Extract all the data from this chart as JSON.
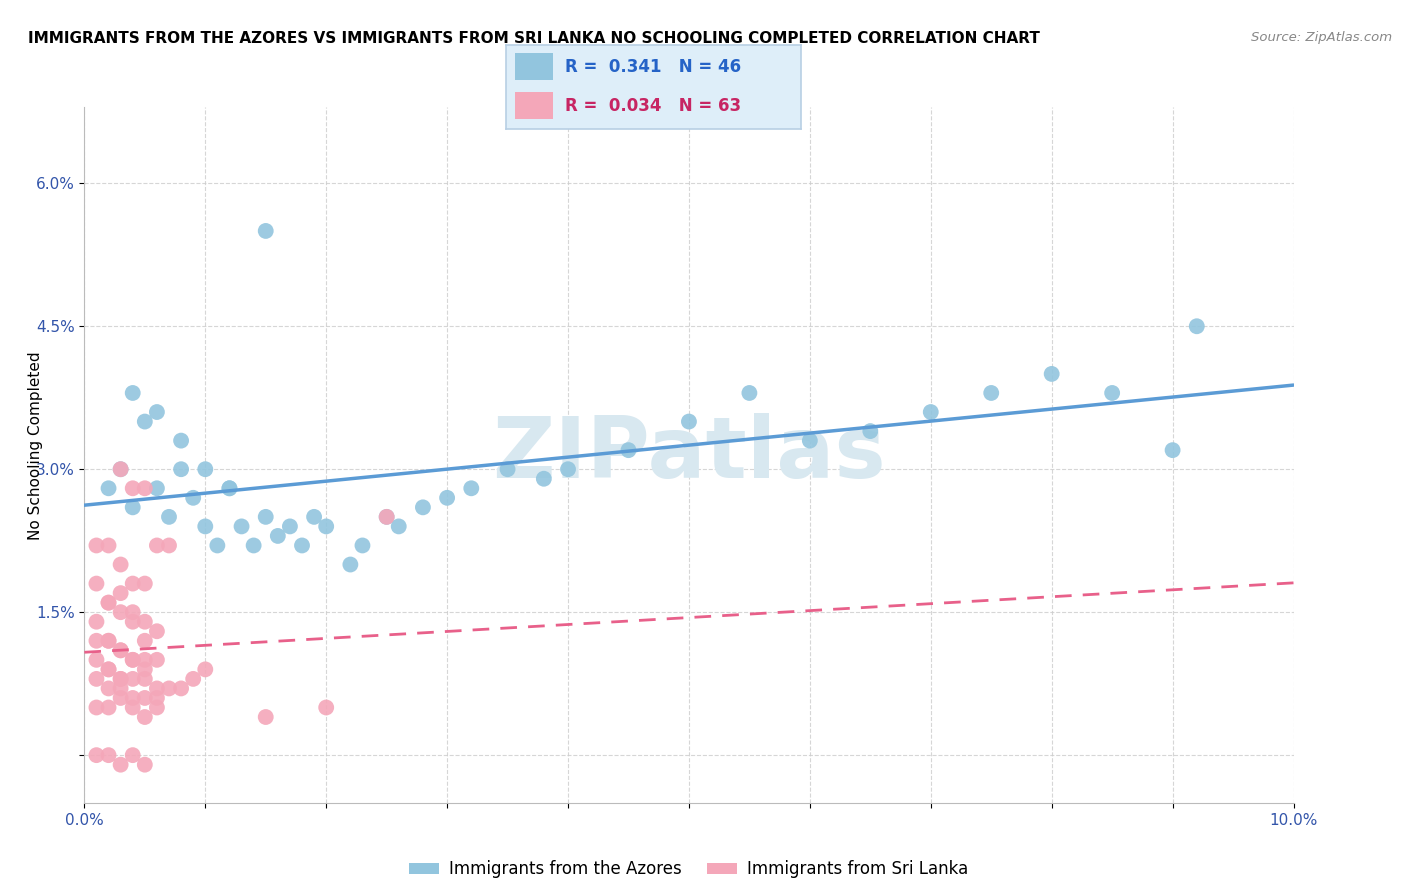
{
  "title": "IMMIGRANTS FROM THE AZORES VS IMMIGRANTS FROM SRI LANKA NO SCHOOLING COMPLETED CORRELATION CHART",
  "source": "Source: ZipAtlas.com",
  "ylabel": "No Schooling Completed",
  "xlim": [
    0.0,
    0.1
  ],
  "ylim": [
    -0.005,
    0.068
  ],
  "xticks": [
    0.0,
    0.01,
    0.02,
    0.03,
    0.04,
    0.05,
    0.06,
    0.07,
    0.08,
    0.09,
    0.1
  ],
  "xticklabels": [
    "0.0%",
    "",
    "",
    "",
    "",
    "",
    "",
    "",
    "",
    "",
    "10.0%"
  ],
  "ytick_positions": [
    0.0,
    0.015,
    0.03,
    0.045,
    0.06
  ],
  "yticklabels": [
    "",
    "1.5%",
    "3.0%",
    "4.5%",
    "6.0%"
  ],
  "series_azores": {
    "label": "Immigrants from the Azores",
    "R": "0.341",
    "N": "46",
    "color": "#92c5de",
    "line_color": "#5b9bd5",
    "x": [
      0.002,
      0.003,
      0.004,
      0.005,
      0.006,
      0.007,
      0.008,
      0.009,
      0.01,
      0.011,
      0.012,
      0.013,
      0.014,
      0.015,
      0.016,
      0.017,
      0.018,
      0.019,
      0.02,
      0.022,
      0.023,
      0.025,
      0.026,
      0.028,
      0.03,
      0.032,
      0.035,
      0.038,
      0.04,
      0.045,
      0.05,
      0.055,
      0.06,
      0.065,
      0.07,
      0.075,
      0.08,
      0.085,
      0.09,
      0.092,
      0.004,
      0.006,
      0.008,
      0.01,
      0.012,
      0.015
    ],
    "y": [
      0.028,
      0.03,
      0.026,
      0.035,
      0.028,
      0.025,
      0.03,
      0.027,
      0.024,
      0.022,
      0.028,
      0.024,
      0.022,
      0.025,
      0.023,
      0.024,
      0.022,
      0.025,
      0.024,
      0.02,
      0.022,
      0.025,
      0.024,
      0.026,
      0.027,
      0.028,
      0.03,
      0.029,
      0.03,
      0.032,
      0.035,
      0.038,
      0.033,
      0.034,
      0.036,
      0.038,
      0.04,
      0.038,
      0.032,
      0.045,
      0.038,
      0.036,
      0.033,
      0.03,
      0.028,
      0.055
    ]
  },
  "series_srilanka": {
    "label": "Immigrants from Sri Lanka",
    "R": "0.034",
    "N": "63",
    "color": "#f4a7b9",
    "line_color": "#e8608a",
    "x": [
      0.001,
      0.001,
      0.002,
      0.002,
      0.003,
      0.003,
      0.004,
      0.004,
      0.005,
      0.005,
      0.001,
      0.002,
      0.002,
      0.003,
      0.003,
      0.004,
      0.004,
      0.005,
      0.005,
      0.006,
      0.001,
      0.001,
      0.002,
      0.002,
      0.003,
      0.003,
      0.004,
      0.005,
      0.005,
      0.006,
      0.001,
      0.002,
      0.002,
      0.003,
      0.003,
      0.004,
      0.004,
      0.005,
      0.006,
      0.006,
      0.001,
      0.002,
      0.003,
      0.004,
      0.005,
      0.006,
      0.007,
      0.008,
      0.009,
      0.01,
      0.001,
      0.002,
      0.003,
      0.004,
      0.005,
      0.015,
      0.02,
      0.025,
      0.006,
      0.007,
      0.003,
      0.004,
      0.005
    ],
    "y": [
      0.022,
      0.018,
      0.022,
      0.016,
      0.02,
      0.017,
      0.018,
      0.015,
      0.018,
      0.014,
      0.014,
      0.016,
      0.012,
      0.015,
      0.011,
      0.014,
      0.01,
      0.012,
      0.009,
      0.013,
      0.012,
      0.01,
      0.012,
      0.009,
      0.011,
      0.008,
      0.01,
      0.01,
      0.008,
      0.01,
      0.008,
      0.009,
      0.007,
      0.008,
      0.007,
      0.008,
      0.006,
      0.006,
      0.007,
      0.006,
      0.005,
      0.005,
      0.006,
      0.005,
      0.004,
      0.005,
      0.007,
      0.007,
      0.008,
      0.009,
      0.0,
      0.0,
      -0.001,
      0.0,
      -0.001,
      0.004,
      0.005,
      0.025,
      0.022,
      0.022,
      0.03,
      0.028,
      0.028
    ]
  },
  "legend_box_color": "#deeef9",
  "legend_border_color": "#b8cfe4",
  "watermark_text": "ZIPatlas",
  "watermark_color": "#d8e8f0",
  "background_color": "#ffffff",
  "grid_color": "#cccccc",
  "r_color_azores": "#2563c7",
  "r_color_srilanka": "#c72563",
  "title_fontsize": 11,
  "tick_fontsize": 11,
  "legend_fontsize": 12
}
